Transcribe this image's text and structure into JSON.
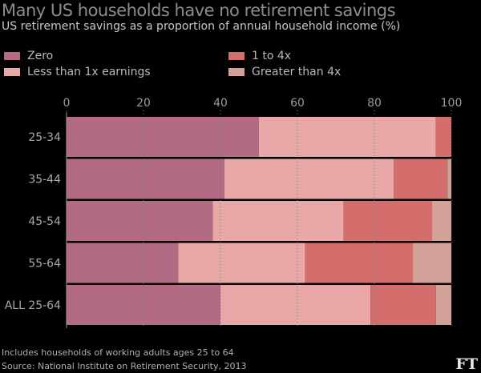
{
  "chart_data": {
    "type": "bar",
    "orientation": "horizontal",
    "stacked": true,
    "title": "Many US households have no retirement savings",
    "subtitle": "US retirement savings as a proportion of annual household income (%)",
    "categories": [
      "25-34",
      "35-44",
      "45-54",
      "55-64",
      "ALL 25-64"
    ],
    "series": [
      {
        "name": "Zero",
        "color": "#b36b83",
        "values": [
          50,
          41,
          38,
          29,
          40
        ]
      },
      {
        "name": "Less than 1x earnings",
        "color": "#eaa7a7",
        "values": [
          46,
          44,
          34,
          33,
          39
        ]
      },
      {
        "name": "1 to 4x",
        "color": "#d46e6c",
        "values": [
          4,
          14,
          23,
          28,
          17
        ]
      },
      {
        "name": "Greater than 4x",
        "color": "#d2a298",
        "values": [
          0,
          1,
          5,
          10,
          4
        ]
      }
    ],
    "xlim": [
      0,
      100
    ],
    "xticks": [
      "0",
      "20",
      "40",
      "60",
      "80",
      "100"
    ],
    "grid": true,
    "legend_position": "top"
  },
  "notes": {
    "footnote": "Includes households of working adults ages 25 to 64",
    "source": "Source: National Institute on Retirement Security, 2013"
  },
  "logo": "FT"
}
